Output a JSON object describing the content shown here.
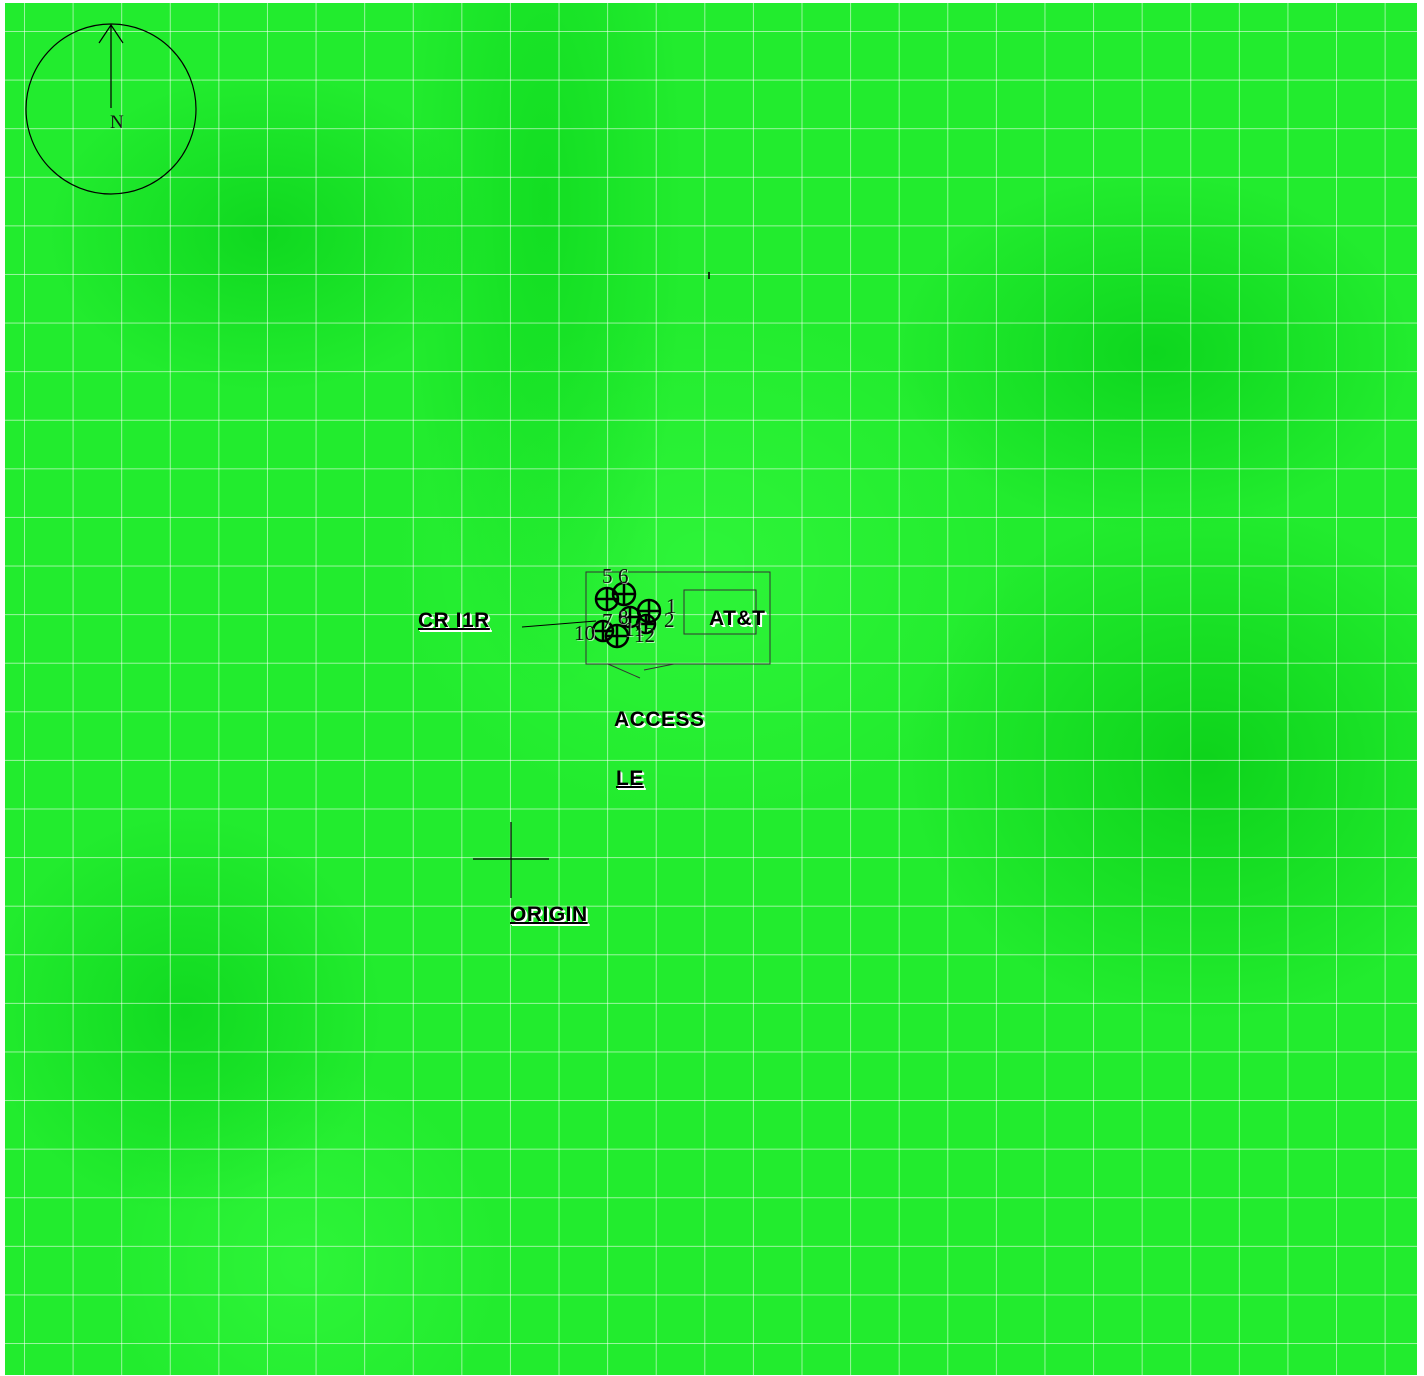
{
  "map": {
    "compass": {
      "north_label": "N"
    },
    "labels": {
      "cr": "CR I1R",
      "att": "AT&T",
      "access": "ACCESS",
      "le": "LE",
      "origin": "ORIGIN"
    },
    "sample_points": [
      {
        "id": "1",
        "label": "1"
      },
      {
        "id": "2",
        "label": "2"
      },
      {
        "id": "5",
        "label": "5"
      },
      {
        "id": "6",
        "label": "6"
      },
      {
        "id": "7",
        "label": "7"
      },
      {
        "id": "8",
        "label": "8"
      },
      {
        "id": "10",
        "label": "10"
      },
      {
        "id": "11",
        "label": "11"
      },
      {
        "id": "12",
        "label": "12"
      }
    ],
    "colors": {
      "field": "#22ec2e",
      "grid": "#ffffff",
      "ink": "#000000"
    }
  }
}
